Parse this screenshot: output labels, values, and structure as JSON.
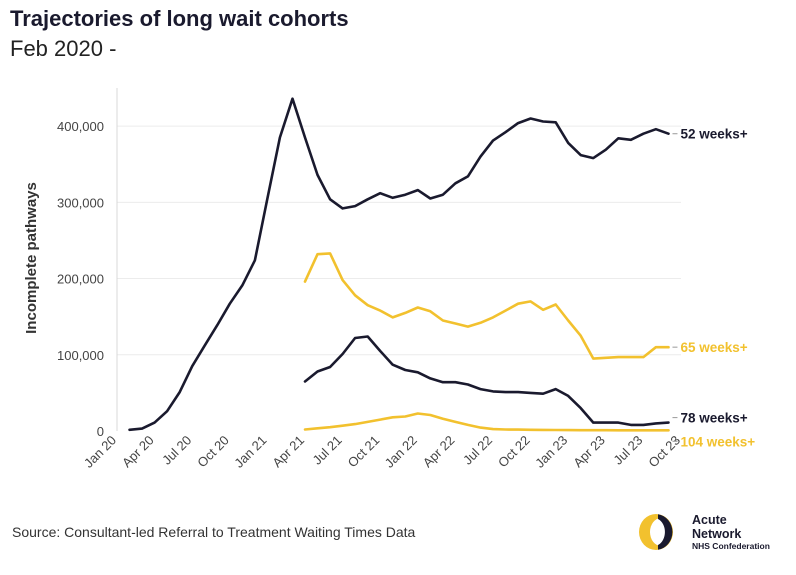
{
  "header": {
    "title": "Trajectories of long wait cohorts",
    "subtitle": "Feb 2020 -"
  },
  "footer": {
    "source": "Source: Consultant-led Referral to Treatment Waiting Times Data"
  },
  "logo": {
    "line1": "Acute",
    "line2": "Network",
    "line3": "NHS Confederation",
    "colors": {
      "navy": "#1a1a2e",
      "gold": "#f2c12e"
    }
  },
  "chart_data": {
    "type": "line",
    "title": "Trajectories of long wait cohorts",
    "subtitle": "Feb 2020 -",
    "xlabel": "",
    "ylabel": "Incomplete pathways",
    "ylim": [
      0,
      450000
    ],
    "yticks": [
      0,
      100000,
      200000,
      300000,
      400000
    ],
    "ytick_labels": [
      "0",
      "100,000",
      "200,000",
      "300,000",
      "400,000"
    ],
    "xlim": [
      0,
      45
    ],
    "xticks": [
      0,
      3,
      6,
      9,
      12,
      15,
      18,
      21,
      24,
      27,
      30,
      33,
      36,
      39,
      42,
      45
    ],
    "xtick_labels": [
      "Jan 20",
      "Apr 20",
      "Jul 20",
      "Oct 20",
      "Jan 21",
      "Apr 21",
      "Jul 21",
      "Oct 21",
      "Jan 22",
      "Apr 22",
      "Jul 22",
      "Oct 22",
      "Jan 23",
      "Apr 23",
      "Jul 23",
      "Oct 23"
    ],
    "grid": "horizontal",
    "series": [
      {
        "name": "52 weeks+",
        "color": "#1a1a2e",
        "start_index": 1,
        "values": [
          1600,
          3100,
          11000,
          26000,
          51000,
          85000,
          112000,
          139000,
          167000,
          191000,
          224000,
          305000,
          385000,
          436000,
          385000,
          336000,
          304000,
          292000,
          295000,
          304000,
          312000,
          306000,
          310000,
          316000,
          305000,
          310000,
          325000,
          334000,
          360000,
          381000,
          392000,
          404000,
          410000,
          406000,
          405000,
          378000,
          362000,
          358000,
          369000,
          384000,
          382000,
          390000,
          396000,
          390000
        ]
      },
      {
        "name": "65 weeks+",
        "color": "#f2c12e",
        "start_index": 15,
        "values": [
          196000,
          232000,
          233000,
          198000,
          178000,
          165000,
          158000,
          149000,
          155000,
          162000,
          157000,
          145000,
          141000,
          137000,
          142000,
          149000,
          158000,
          167000,
          170000,
          159000,
          166000,
          145000,
          125000,
          95000,
          96000,
          97000,
          97000,
          97000,
          110000,
          110000
        ]
      },
      {
        "name": "78 weeks+",
        "color": "#1a1a2e",
        "start_index": 15,
        "values": [
          65000,
          78000,
          84000,
          101000,
          122000,
          124000,
          105000,
          87000,
          80000,
          77000,
          69000,
          64000,
          64000,
          61000,
          55000,
          52000,
          51000,
          51000,
          50000,
          49000,
          55000,
          46000,
          30000,
          11000,
          11000,
          11000,
          8000,
          8000,
          10000,
          11000
        ]
      },
      {
        "name": "104 weeks+",
        "color": "#f2c12e",
        "start_index": 15,
        "values": [
          2000,
          3500,
          5000,
          7000,
          9000,
          12000,
          15000,
          18000,
          19000,
          23000,
          21000,
          16000,
          12000,
          8000,
          4500,
          2500,
          2000,
          1800,
          1600,
          1400,
          1300,
          1200,
          1100,
          1000,
          1000,
          900,
          900,
          900,
          900,
          900
        ]
      }
    ]
  }
}
